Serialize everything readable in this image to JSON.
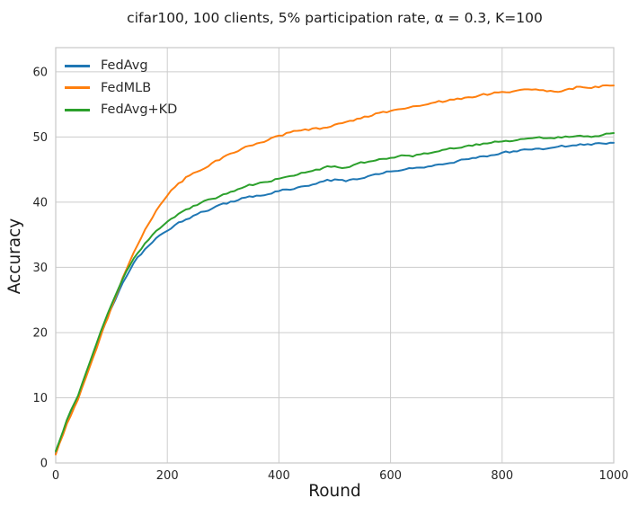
{
  "chart_data": {
    "type": "line",
    "title": "cifar100, 100 clients, 5% participation rate, α = 0.3, K=100",
    "xlabel": "Round",
    "ylabel": "Accuracy",
    "xlim": [
      0,
      1000
    ],
    "ylim": [
      0,
      63.7
    ],
    "x_ticks": [
      0,
      200,
      400,
      600,
      800,
      1000
    ],
    "y_ticks": [
      0,
      10,
      20,
      30,
      40,
      50,
      60
    ],
    "grid": true,
    "legend": {
      "position": "upper-left",
      "frame": false
    },
    "noise_amplitude": 0.16,
    "x": [
      0,
      20,
      40,
      60,
      80,
      100,
      120,
      140,
      160,
      180,
      200,
      220,
      240,
      260,
      280,
      300,
      320,
      340,
      360,
      380,
      400,
      420,
      440,
      460,
      480,
      500,
      520,
      540,
      560,
      580,
      600,
      620,
      640,
      660,
      680,
      700,
      720,
      740,
      760,
      780,
      800,
      820,
      840,
      860,
      880,
      900,
      920,
      940,
      960,
      980,
      1000
    ],
    "series": [
      {
        "name": "FedAvg",
        "color": "#1f77b4",
        "values": [
          1.5,
          6.3,
          10.0,
          14.8,
          19.6,
          23.8,
          27.6,
          30.7,
          32.8,
          34.5,
          35.6,
          36.9,
          37.5,
          38.5,
          39.0,
          39.8,
          40.1,
          40.7,
          41.0,
          41.2,
          41.7,
          41.9,
          42.4,
          42.7,
          43.2,
          43.5,
          43.2,
          43.5,
          44.0,
          44.3,
          44.7,
          44.9,
          45.2,
          45.3,
          45.7,
          45.9,
          46.3,
          46.6,
          47.0,
          47.2,
          47.6,
          47.8,
          48.1,
          48.2,
          48.2,
          48.5,
          48.6,
          48.9,
          48.8,
          49.0,
          49.1
        ]
      },
      {
        "name": "FedMLB",
        "color": "#ff7f0e",
        "values": [
          1.3,
          6.0,
          9.7,
          14.5,
          19.3,
          23.9,
          28.4,
          32.3,
          35.8,
          38.7,
          41.0,
          42.9,
          44.1,
          44.9,
          46.0,
          46.9,
          47.6,
          48.5,
          49.0,
          49.5,
          50.2,
          50.7,
          51.0,
          51.3,
          51.4,
          51.9,
          52.3,
          52.8,
          53.1,
          53.7,
          54.0,
          54.3,
          54.7,
          54.9,
          55.3,
          55.5,
          55.9,
          56.1,
          56.4,
          56.6,
          56.9,
          57.0,
          57.3,
          57.3,
          57.0,
          56.9,
          57.4,
          57.7,
          57.5,
          57.9,
          57.9
        ]
      },
      {
        "name": "FedAvg+KD",
        "color": "#2ca02c",
        "values": [
          1.8,
          6.6,
          10.3,
          15.2,
          20.0,
          24.3,
          28.2,
          31.4,
          33.7,
          35.6,
          37.0,
          38.2,
          39.0,
          39.9,
          40.5,
          41.2,
          41.7,
          42.4,
          42.8,
          43.1,
          43.6,
          44.0,
          44.5,
          44.8,
          45.3,
          45.5,
          45.3,
          45.9,
          46.2,
          46.6,
          46.8,
          47.2,
          47.0,
          47.5,
          47.7,
          48.1,
          48.3,
          48.7,
          48.8,
          49.1,
          49.3,
          49.4,
          49.7,
          49.9,
          49.8,
          50.0,
          50.0,
          50.2,
          50.0,
          50.3,
          50.6
        ]
      }
    ]
  },
  "style": {
    "grid_color": "#cccccc",
    "spine_color": "#c8c8c8",
    "tick_label_color": "#262626",
    "line_width": 2,
    "background": "#ffffff"
  }
}
